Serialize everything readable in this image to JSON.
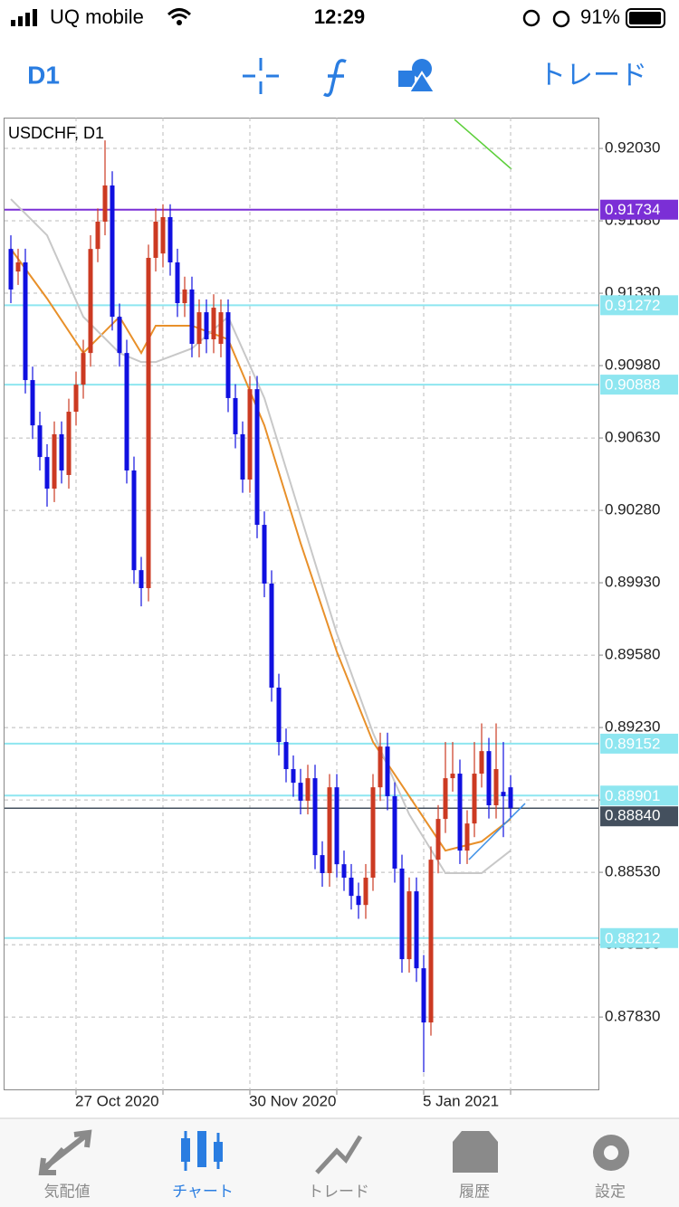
{
  "status_bar": {
    "carrier": "UQ mobile",
    "time": "12:29",
    "battery": "91%"
  },
  "toolbar": {
    "timeframe": "D1",
    "trade": "トレード"
  },
  "tabs": [
    "気配値",
    "チャート",
    "トレード",
    "履歴",
    "設定"
  ],
  "chart_data": {
    "type": "candlestick",
    "title": "USDCHF, D1",
    "categories": [
      null,
      null,
      null,
      null,
      null,
      null,
      null,
      null,
      null,
      "27 Oct 2020",
      null,
      null,
      null,
      null,
      null,
      null,
      null,
      null,
      null,
      null,
      null,
      null,
      null,
      null,
      null,
      null,
      null,
      null,
      null,
      null,
      null,
      null,
      null,
      "30 Nov 2020",
      null,
      null,
      null,
      null,
      null,
      null,
      null,
      null,
      null,
      null,
      null,
      null,
      null,
      null,
      null,
      null,
      null,
      null,
      null,
      null,
      null,
      null,
      null,
      "5 Jan 2021",
      null,
      null,
      null,
      null,
      null,
      null,
      null,
      null,
      null,
      null,
      null,
      null
    ],
    "open": [
      0.91544,
      0.91435,
      0.91479,
      0.9091,
      0.90691,
      0.90538,
      0.90385,
      0.90648,
      0.90451,
      0.90757,
      0.90888,
      0.91041,
      0.91544,
      0.91676,
      0.91851,
      0.91216,
      0.91041,
      0.90473,
      0.89991,
      0.89904,
      0.91501,
      0.91522,
      0.91698,
      0.91479,
      0.91282,
      0.91348,
      0.91085,
      0.91238,
      0.91107,
      0.91085,
      0.91238,
      0.90823,
      0.90648,
      0.90429,
      0.90866,
      0.9021,
      0.89926,
      0.89423,
      0.8916,
      0.89029,
      0.88963,
      0.88876,
      0.88985,
      0.88613,
      0.88526,
      0.88941,
      0.88569,
      0.88504,
      0.88416,
      0.88372,
      0.88504,
      0.88941,
      0.89138,
      0.88898,
      0.88548,
      0.8811,
      0.88438,
      0.88066,
      0.87804,
      0.88591,
      0.88788,
      0.88985,
      0.89007,
      0.88635,
      0.88766,
      0.89007,
      0.89116,
      0.88854,
      0.88919,
      0.88941
    ],
    "close": [
      0.91348,
      0.91479,
      0.9091,
      0.90691,
      0.90538,
      0.90385,
      0.90648,
      0.90473,
      0.90757,
      0.90888,
      0.91041,
      0.91544,
      0.91676,
      0.91851,
      0.91216,
      0.91041,
      0.90473,
      0.89991,
      0.89904,
      0.91501,
      0.91676,
      0.91698,
      0.91479,
      0.91282,
      0.91348,
      0.91085,
      0.91238,
      0.91107,
      0.9126,
      0.91238,
      0.90823,
      0.90648,
      0.90429,
      0.90866,
      0.9021,
      0.89926,
      0.89423,
      0.8916,
      0.89029,
      0.88963,
      0.88876,
      0.88985,
      0.88613,
      0.88526,
      0.88941,
      0.88569,
      0.88504,
      0.88416,
      0.88372,
      0.88504,
      0.88941,
      0.89138,
      0.88898,
      0.88548,
      0.8811,
      0.88438,
      0.88066,
      0.87804,
      0.88591,
      0.88788,
      0.88985,
      0.89007,
      0.88635,
      0.88766,
      0.89007,
      0.89116,
      0.88854,
      0.89029,
      0.88898,
      0.8884
    ],
    "high": [
      0.9161,
      0.91545,
      0.91545,
      0.90975,
      0.90757,
      0.906,
      0.9071,
      0.9071,
      0.9082,
      0.9095,
      0.91105,
      0.9161,
      0.9174,
      0.92069,
      0.9192,
      0.9128,
      0.91105,
      0.9054,
      0.90055,
      0.91565,
      0.9174,
      0.9176,
      0.9176,
      0.91545,
      0.9141,
      0.9141,
      0.913,
      0.913,
      0.91325,
      0.913,
      0.913,
      0.9089,
      0.9071,
      0.9093,
      0.9093,
      0.90275,
      0.8999,
      0.8949,
      0.89225,
      0.89095,
      0.8903,
      0.8905,
      0.8905,
      0.8868,
      0.89005,
      0.89005,
      0.88635,
      0.8857,
      0.8848,
      0.8857,
      0.89005,
      0.89205,
      0.89205,
      0.88965,
      0.88615,
      0.88505,
      0.88505,
      0.8813,
      0.88655,
      0.88855,
      0.8916,
      0.8916,
      0.89075,
      0.8883,
      0.8916,
      0.8925,
      0.8918,
      0.8925,
      0.8916,
      0.89
    ],
    "low": [
      0.91282,
      0.9137,
      0.90845,
      0.90625,
      0.90473,
      0.90298,
      0.9032,
      0.9041,
      0.90385,
      0.9069,
      0.9082,
      0.90975,
      0.9148,
      0.9161,
      0.9115,
      0.90975,
      0.9041,
      0.89925,
      0.89816,
      0.8984,
      0.91435,
      0.91455,
      0.91415,
      0.91215,
      0.91215,
      0.9102,
      0.9102,
      0.9104,
      0.9104,
      0.9102,
      0.90755,
      0.9058,
      0.90365,
      0.90365,
      0.90145,
      0.8986,
      0.89355,
      0.89095,
      0.88965,
      0.88895,
      0.8881,
      0.8881,
      0.88545,
      0.8846,
      0.8846,
      0.88505,
      0.8844,
      0.8835,
      0.88305,
      0.88305,
      0.8844,
      0.88875,
      0.8883,
      0.8848,
      0.88045,
      0.88045,
      0.88,
      0.87563,
      0.8774,
      0.88525,
      0.8872,
      0.8892,
      0.8857,
      0.8857,
      0.887,
      0.8894,
      0.8879,
      0.8879,
      0.887,
      0.8879
    ],
    "up_color": "#cc3a22",
    "down_color": "#1010e0",
    "ylim": [
      0.87476,
      0.92179
    ],
    "yticks": [
      {
        "value": 0.9203,
        "label": "0.92030"
      },
      {
        "value": 0.9168,
        "label": "0.91680"
      },
      {
        "value": 0.9133,
        "label": "0.91330"
      },
      {
        "value": 0.9098,
        "label": "0.90980"
      },
      {
        "value": 0.9063,
        "label": "0.90630"
      },
      {
        "value": 0.9028,
        "label": "0.90280"
      },
      {
        "value": 0.8993,
        "label": "0.89930"
      },
      {
        "value": 0.8958,
        "label": "0.89580"
      },
      {
        "value": 0.8923,
        "label": "0.89230"
      },
      {
        "value": 0.8888,
        "label": "0.88880"
      },
      {
        "value": 0.8853,
        "label": "0.88530"
      },
      {
        "value": 0.8818,
        "label": "0.88180"
      },
      {
        "value": 0.8783,
        "label": "0.87830"
      }
    ],
    "grid": true,
    "lines": [
      {
        "color": "#e8902a",
        "x": [
          0,
          5,
          10,
          15,
          18,
          20,
          25,
          30,
          35,
          40,
          45,
          50,
          55,
          60,
          65,
          69
        ],
        "values": [
          0.91544,
          0.91304,
          0.91041,
          0.91216,
          0.91041,
          0.91173,
          0.91173,
          0.91107,
          0.90691,
          0.90122,
          0.89597,
          0.8916,
          0.88898,
          0.88635,
          0.88679,
          0.88788
        ]
      },
      {
        "color": "#c8c8c8",
        "x": [
          0,
          5,
          10,
          15,
          18,
          20,
          25,
          30,
          35,
          40,
          45,
          50,
          55,
          60,
          65,
          69
        ],
        "values": [
          0.91785,
          0.9161,
          0.91216,
          0.91041,
          0.90997,
          0.90997,
          0.91063,
          0.91216,
          0.90823,
          0.90254,
          0.89685,
          0.89204,
          0.8881,
          0.88526,
          0.88526,
          0.88635
        ]
      }
    ],
    "hlines": [
      {
        "value": 0.91734,
        "color": "#7b2fd6",
        "text_color": "#ffffff"
      },
      {
        "value": 0.91272,
        "color": "#8ee6f0",
        "text_color": "#ffffff"
      },
      {
        "value": 0.90888,
        "color": "#8ee6f0",
        "text_color": "#ffffff"
      },
      {
        "value": 0.89152,
        "color": "#8ee6f0",
        "text_color": "#ffffff"
      },
      {
        "value": 0.88901,
        "color": "#8ee6f0",
        "text_color": "#ffffff"
      },
      {
        "value": 0.88212,
        "color": "#8ee6f0",
        "text_color": "#ffffff"
      }
    ],
    "current_price": {
      "value": 0.8884,
      "label": "0.88840",
      "color": "#44505e"
    }
  }
}
